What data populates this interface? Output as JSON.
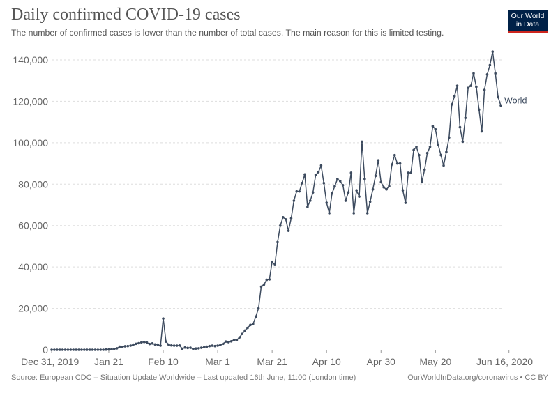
{
  "header": {
    "title": "Daily confirmed COVID-19 cases",
    "subtitle": "The number of confirmed cases is lower than the number of total cases. The main reason for this is limited testing.",
    "logo_line1": "Our World",
    "logo_line2": "in Data"
  },
  "footer": {
    "source": "Source: European CDC – Situation Update Worldwide – Last updated 16th June, 11:00 (London time)",
    "credit": "OurWorldInData.org/coronavirus • CC BY"
  },
  "colors": {
    "series": "#3d4b5f",
    "grid": "#dddddd",
    "logo_bg": "#002147",
    "logo_accent": "#ce261e"
  },
  "chart_data": {
    "type": "line",
    "title": "Daily confirmed COVID-19 cases",
    "xlabel": "",
    "ylabel": "",
    "ylim": [
      0,
      140000
    ],
    "grid": "horizontal dashed",
    "yticks": [
      0,
      20000,
      40000,
      60000,
      80000,
      100000,
      120000,
      140000
    ],
    "ytick_labels": [
      "0",
      "20,000",
      "40,000",
      "60,000",
      "80,000",
      "100,000",
      "120,000",
      "140,000"
    ],
    "xticks": [
      "2019-12-31",
      "2020-01-21",
      "2020-02-10",
      "2020-03-01",
      "2020-03-21",
      "2020-04-10",
      "2020-04-30",
      "2020-05-20",
      "2020-06-16"
    ],
    "xtick_labels": [
      "Dec 31, 2019",
      "Jan 21",
      "Feb 10",
      "Mar 1",
      "Mar 21",
      "Apr 10",
      "Apr 30",
      "May 20",
      "Jun 16, 2020"
    ],
    "start_date": "2019-12-31",
    "series": [
      {
        "name": "World",
        "values": [
          0,
          0,
          0,
          0,
          0,
          0,
          0,
          0,
          0,
          0,
          0,
          0,
          0,
          0,
          0,
          0,
          0,
          0,
          0,
          0,
          100,
          150,
          250,
          400,
          700,
          1500,
          1400,
          1700,
          1800,
          2000,
          2500,
          2900,
          3200,
          3600,
          3800,
          3500,
          2800,
          3100,
          2600,
          2500,
          2000,
          15100,
          4000,
          2500,
          2100,
          2000,
          2000,
          2100,
          500,
          1100,
          900,
          1000,
          400,
          600,
          700,
          1000,
          1200,
          1500,
          1800,
          2000,
          1800,
          2000,
          2400,
          2900,
          4000,
          3700,
          4100,
          4800,
          4700,
          6000,
          7700,
          9300,
          10600,
          12000,
          12500,
          16000,
          20000,
          30500,
          31500,
          33800,
          34000,
          42500,
          41000,
          52000,
          60000,
          64000,
          63000,
          57500,
          63500,
          72000,
          76500,
          76500,
          80500,
          84700,
          69000,
          72000,
          76000,
          84500,
          85800,
          89000,
          80500,
          71000,
          66000,
          75500,
          79000,
          82500,
          81500,
          79500,
          72000,
          76000,
          85500,
          66000,
          77000,
          74000,
          100500,
          82500,
          66000,
          71500,
          77500,
          84000,
          91500,
          81000,
          78500,
          77500,
          79000,
          89500,
          94000,
          90000,
          90000,
          77000,
          71000,
          85500,
          85500,
          96500,
          98000,
          94000,
          81000,
          87000,
          95000,
          98000,
          108000,
          106500,
          99000,
          94000,
          89000,
          95500,
          102500,
          118500,
          122500,
          127500,
          107500,
          100500,
          112000,
          126500,
          127500,
          133500,
          127000,
          116000,
          105500,
          125500,
          133000,
          137500,
          144000,
          133500,
          122000,
          118000
        ]
      }
    ]
  }
}
